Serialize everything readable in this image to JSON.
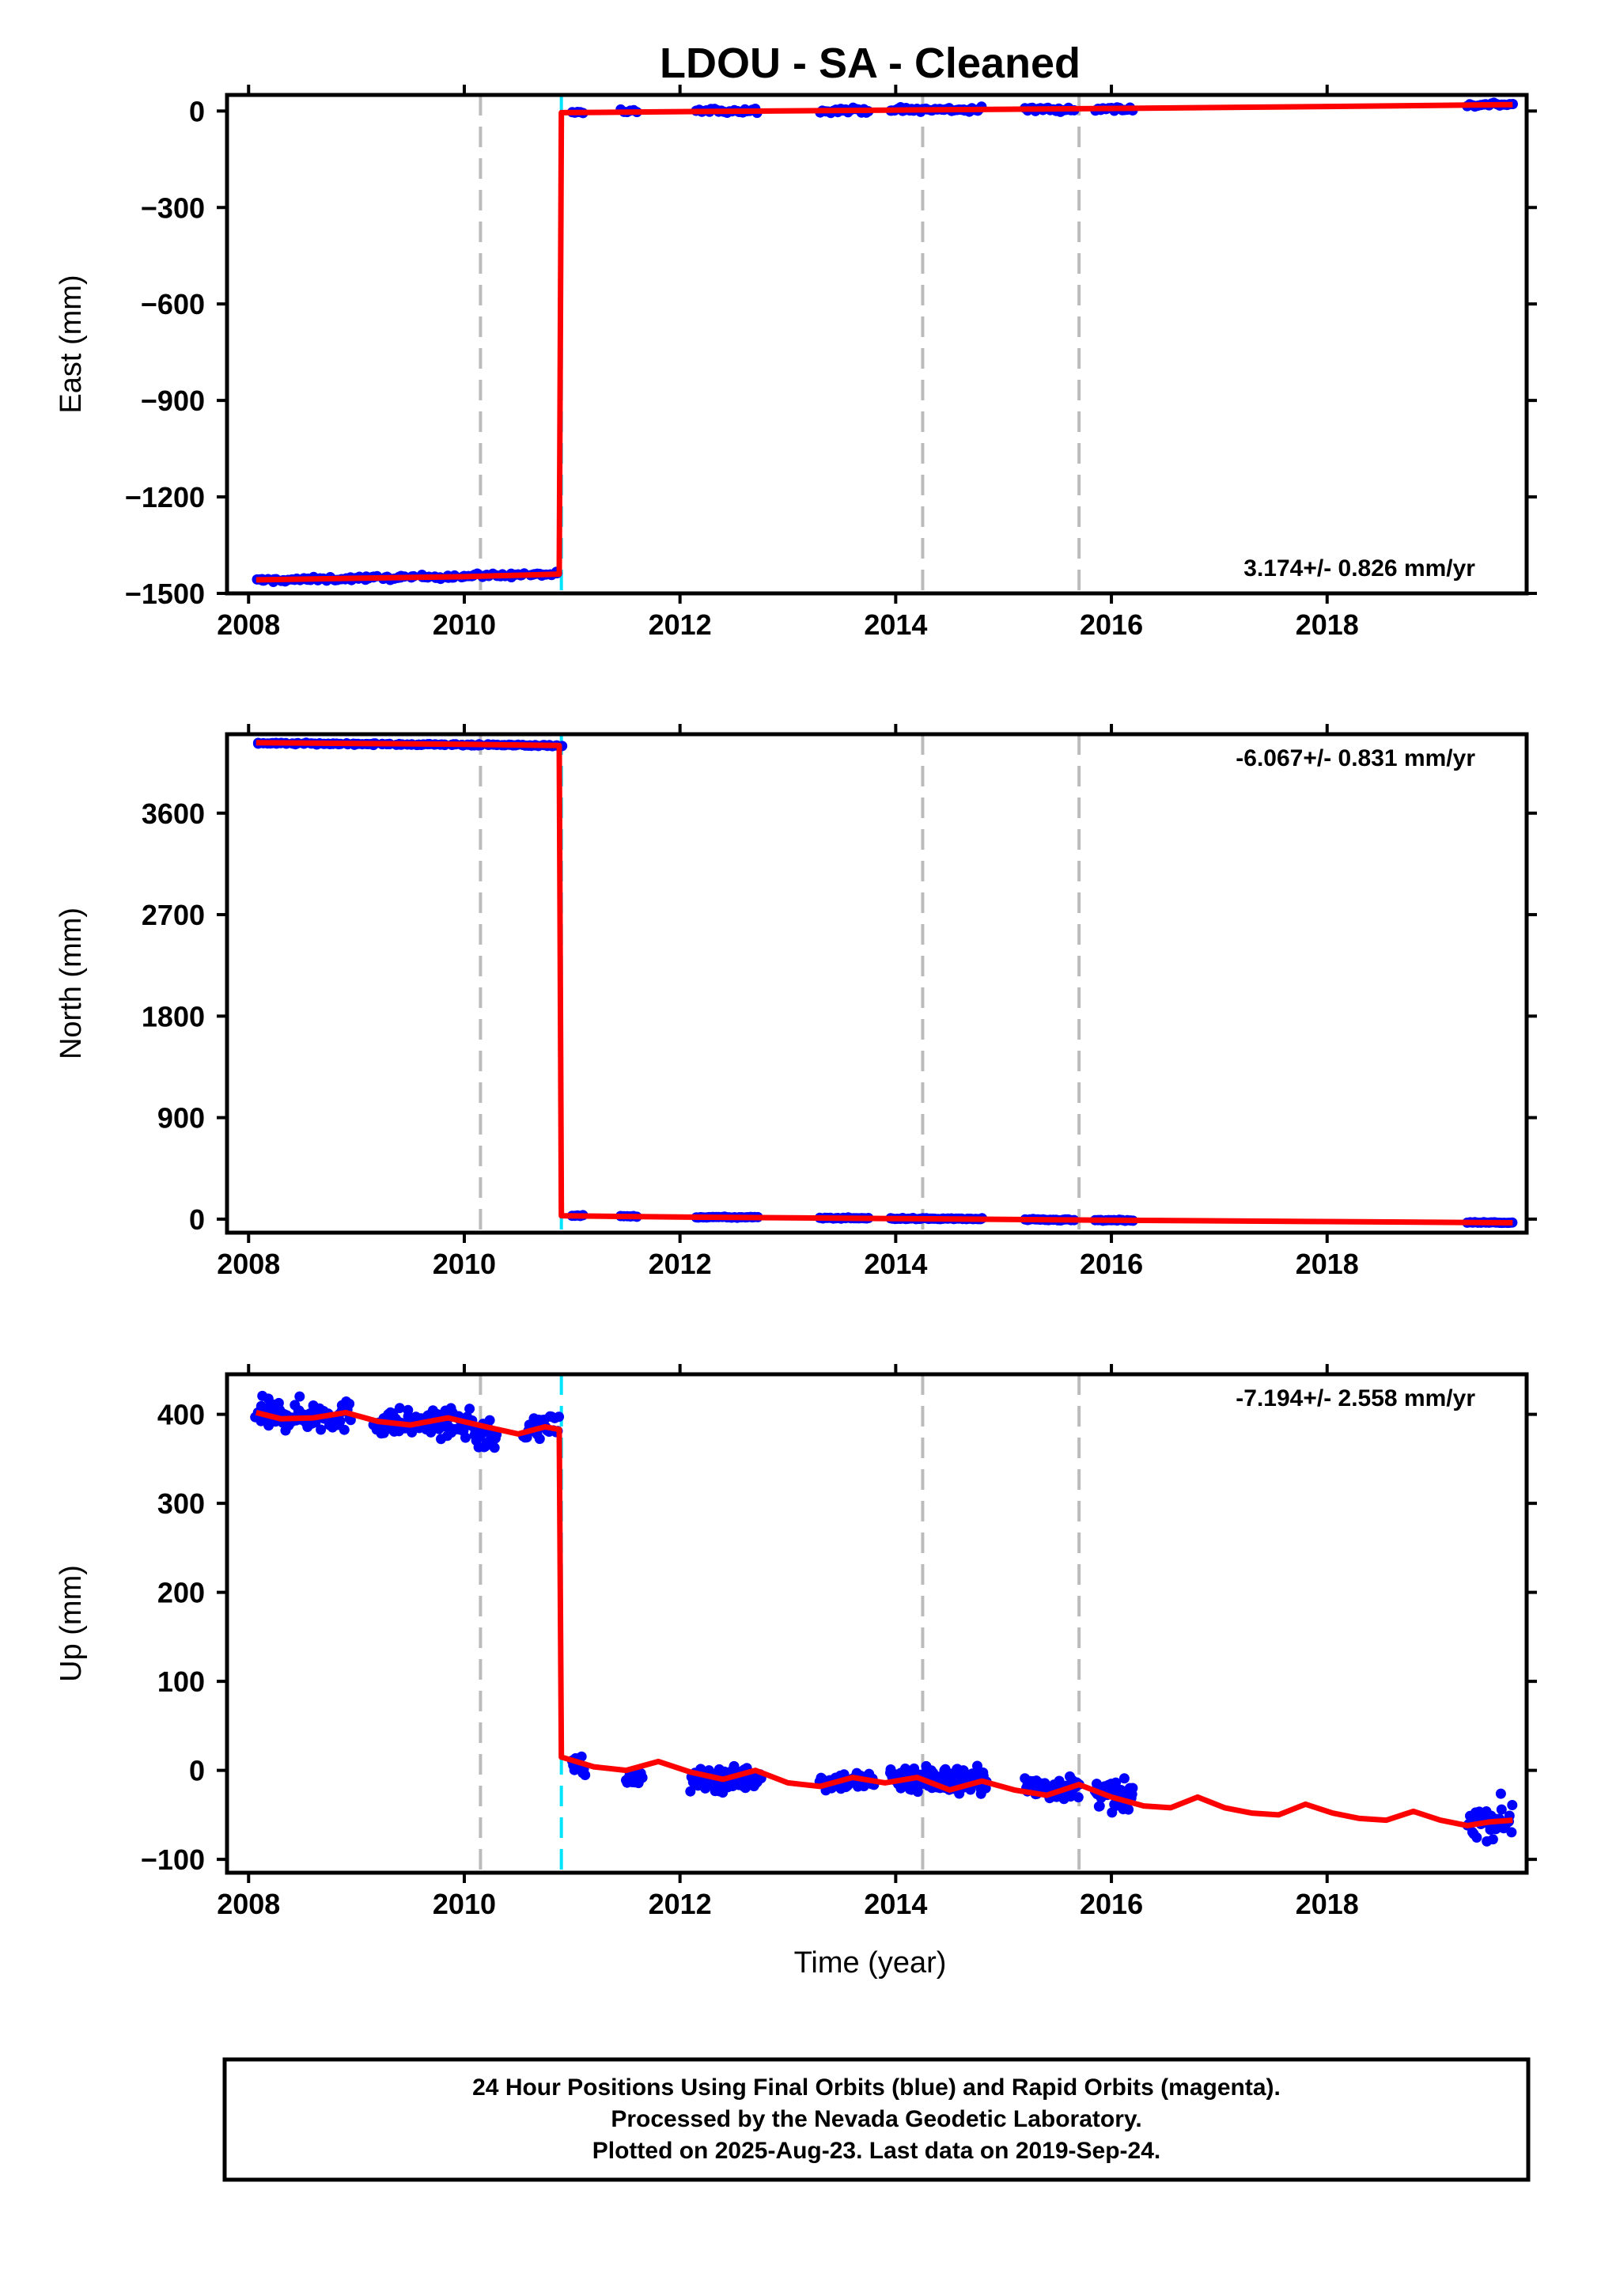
{
  "figure": {
    "title": "LDOU  - SA - Cleaned",
    "xlabel": "Time (year)",
    "footer": [
      "24 Hour Positions Using Final Orbits (blue) and Rapid Orbits (magenta).",
      "Processed by the Nevada Geodetic Laboratory.",
      "Plotted on 2025-Aug-23. Last data on 2019-Sep-24."
    ]
  },
  "colors": {
    "data_points": "#0000ff",
    "model_line": "#ff0000",
    "equipment_change": "#bbbbbb",
    "earthquake_offset": "#00e5ff",
    "frame": "#000000"
  },
  "chart_data": [
    {
      "type": "scatter",
      "component": "East",
      "ylabel": "East (mm)",
      "rate_text": "3.174+/- 0.826 mm/yr",
      "xlim": [
        2007.8,
        2019.85
      ],
      "ylim": [
        -1500,
        50
      ],
      "xticks": [
        2008,
        2010,
        2012,
        2014,
        2016,
        2018
      ],
      "yticks": [
        0,
        -300,
        -600,
        -900,
        -1200,
        -1500
      ],
      "grid": false,
      "vlines_dashed_gray": [
        2010.15,
        2014.25,
        2015.7
      ],
      "vlines_dashed_cyan": [
        2010.9
      ],
      "data_segments": [
        {
          "start": 2008.07,
          "end": 2010.88,
          "y0": -1460,
          "y1": -1440,
          "scatter": 6,
          "count": 120
        },
        {
          "start": 2011.0,
          "end": 2011.1,
          "y0": -5,
          "y1": -5,
          "scatter": 6,
          "count": 5
        },
        {
          "start": 2011.45,
          "end": 2011.6,
          "y0": 0,
          "y1": 0,
          "scatter": 6,
          "count": 6
        },
        {
          "start": 2012.15,
          "end": 2012.72,
          "y0": 0,
          "y1": 2,
          "scatter": 7,
          "count": 25
        },
        {
          "start": 2013.3,
          "end": 2013.75,
          "y0": 2,
          "y1": 3,
          "scatter": 7,
          "count": 20
        },
        {
          "start": 2013.95,
          "end": 2014.8,
          "y0": 3,
          "y1": 5,
          "scatter": 8,
          "count": 40
        },
        {
          "start": 2015.2,
          "end": 2015.65,
          "y0": 5,
          "y1": 6,
          "scatter": 7,
          "count": 20
        },
        {
          "start": 2015.85,
          "end": 2016.2,
          "y0": 6,
          "y1": 7,
          "scatter": 8,
          "count": 15
        },
        {
          "start": 2019.3,
          "end": 2019.72,
          "y0": 18,
          "y1": 22,
          "scatter": 6,
          "count": 18
        }
      ],
      "model_line": {
        "x": [
          2008.07,
          2009.0,
          2010.0,
          2010.88,
          2010.9,
          2012.0,
          2014.0,
          2016.0,
          2018.0,
          2019.72
        ],
        "y": [
          -1458,
          -1453,
          -1448,
          -1440,
          -5,
          -2,
          3,
          8,
          14,
          20
        ]
      }
    },
    {
      "type": "scatter",
      "component": "North",
      "ylabel": "North (mm)",
      "rate_text": "-6.067+/- 0.831 mm/yr",
      "xlim": [
        2007.8,
        2019.85
      ],
      "ylim": [
        -120,
        4300
      ],
      "xticks": [
        2008,
        2010,
        2012,
        2014,
        2016,
        2018
      ],
      "yticks": [
        3600,
        2700,
        1800,
        900,
        0
      ],
      "grid": false,
      "vlines_dashed_gray": [
        2010.15,
        2014.25,
        2015.7
      ],
      "vlines_dashed_cyan": [
        2010.9
      ],
      "data_segments": [
        {
          "start": 2008.07,
          "end": 2010.88,
          "y0": 4220,
          "y1": 4200,
          "scatter": 6,
          "count": 120
        },
        {
          "start": 2011.0,
          "end": 2011.1,
          "y0": 30,
          "y1": 30,
          "scatter": 5,
          "count": 5
        },
        {
          "start": 2011.45,
          "end": 2011.6,
          "y0": 25,
          "y1": 25,
          "scatter": 5,
          "count": 6
        },
        {
          "start": 2012.15,
          "end": 2012.72,
          "y0": 18,
          "y1": 15,
          "scatter": 5,
          "count": 25
        },
        {
          "start": 2013.3,
          "end": 2013.75,
          "y0": 10,
          "y1": 8,
          "scatter": 5,
          "count": 20
        },
        {
          "start": 2013.95,
          "end": 2014.8,
          "y0": 5,
          "y1": 2,
          "scatter": 5,
          "count": 40
        },
        {
          "start": 2015.2,
          "end": 2015.65,
          "y0": -5,
          "y1": -8,
          "scatter": 5,
          "count": 20
        },
        {
          "start": 2015.85,
          "end": 2016.2,
          "y0": -10,
          "y1": -12,
          "scatter": 5,
          "count": 15
        },
        {
          "start": 2019.3,
          "end": 2019.72,
          "y0": -30,
          "y1": -32,
          "scatter": 5,
          "count": 18
        }
      ],
      "model_line": {
        "x": [
          2008.07,
          2009.0,
          2010.0,
          2010.88,
          2010.9,
          2012.0,
          2014.0,
          2016.0,
          2018.0,
          2019.72
        ],
        "y": [
          4225,
          4218,
          4210,
          4200,
          30,
          18,
          5,
          -10,
          -22,
          -32
        ]
      }
    },
    {
      "type": "scatter",
      "component": "Up",
      "ylabel": "Up (mm)",
      "rate_text": "-7.194+/- 2.558 mm/yr",
      "xlim": [
        2007.8,
        2019.85
      ],
      "ylim": [
        -115,
        445
      ],
      "xticks": [
        2008,
        2010,
        2012,
        2014,
        2016,
        2018
      ],
      "yticks": [
        400,
        300,
        200,
        100,
        0,
        -100
      ],
      "grid": false,
      "vlines_dashed_gray": [
        2010.15,
        2014.25,
        2015.7
      ],
      "vlines_dashed_cyan": [
        2010.9
      ],
      "data_segments": [
        {
          "start": 2008.07,
          "end": 2008.95,
          "y0": 400,
          "y1": 398,
          "scatter": 16,
          "count": 90
        },
        {
          "start": 2009.15,
          "end": 2010.1,
          "y0": 392,
          "y1": 388,
          "scatter": 14,
          "count": 90
        },
        {
          "start": 2010.1,
          "end": 2010.3,
          "y0": 378,
          "y1": 370,
          "scatter": 18,
          "count": 20
        },
        {
          "start": 2010.55,
          "end": 2010.88,
          "y0": 385,
          "y1": 388,
          "scatter": 14,
          "count": 25
        },
        {
          "start": 2011.0,
          "end": 2011.12,
          "y0": 10,
          "y1": 5,
          "scatter": 10,
          "count": 12
        },
        {
          "start": 2011.5,
          "end": 2011.65,
          "y0": -8,
          "y1": -8,
          "scatter": 8,
          "count": 14
        },
        {
          "start": 2012.1,
          "end": 2012.75,
          "y0": -12,
          "y1": -8,
          "scatter": 12,
          "count": 80
        },
        {
          "start": 2013.3,
          "end": 2013.8,
          "y0": -12,
          "y1": -12,
          "scatter": 10,
          "count": 50
        },
        {
          "start": 2013.95,
          "end": 2014.85,
          "y0": -8,
          "y1": -12,
          "scatter": 14,
          "count": 150
        },
        {
          "start": 2015.2,
          "end": 2015.7,
          "y0": -20,
          "y1": -20,
          "scatter": 12,
          "count": 60
        },
        {
          "start": 2015.85,
          "end": 2016.2,
          "y0": -25,
          "y1": -32,
          "scatter": 14,
          "count": 50
        },
        {
          "start": 2019.3,
          "end": 2019.72,
          "y0": -55,
          "y1": -55,
          "scatter": 20,
          "count": 35
        }
      ],
      "model_line": {
        "x": [
          2008.07,
          2008.3,
          2008.6,
          2008.9,
          2009.2,
          2009.5,
          2009.85,
          2010.2,
          2010.5,
          2010.75,
          2010.88,
          2010.9,
          2011.2,
          2011.5,
          2011.8,
          2012.1,
          2012.4,
          2012.7,
          2013.0,
          2013.3,
          2013.6,
          2013.9,
          2014.2,
          2014.5,
          2014.8,
          2015.1,
          2015.4,
          2015.7,
          2016.0,
          2016.3,
          2016.55,
          2016.8,
          2017.05,
          2017.3,
          2017.55,
          2017.8,
          2018.05,
          2018.3,
          2018.55,
          2018.8,
          2019.05,
          2019.3,
          2019.5,
          2019.72
        ],
        "y": [
          402,
          395,
          396,
          402,
          392,
          388,
          396,
          386,
          378,
          386,
          383,
          15,
          4,
          0,
          10,
          -2,
          -10,
          0,
          -14,
          -18,
          -8,
          -14,
          -8,
          -22,
          -12,
          -22,
          -28,
          -16,
          -30,
          -40,
          -42,
          -30,
          -42,
          -48,
          -50,
          -38,
          -48,
          -54,
          -56,
          -46,
          -56,
          -62,
          -58,
          -56
        ]
      }
    }
  ]
}
